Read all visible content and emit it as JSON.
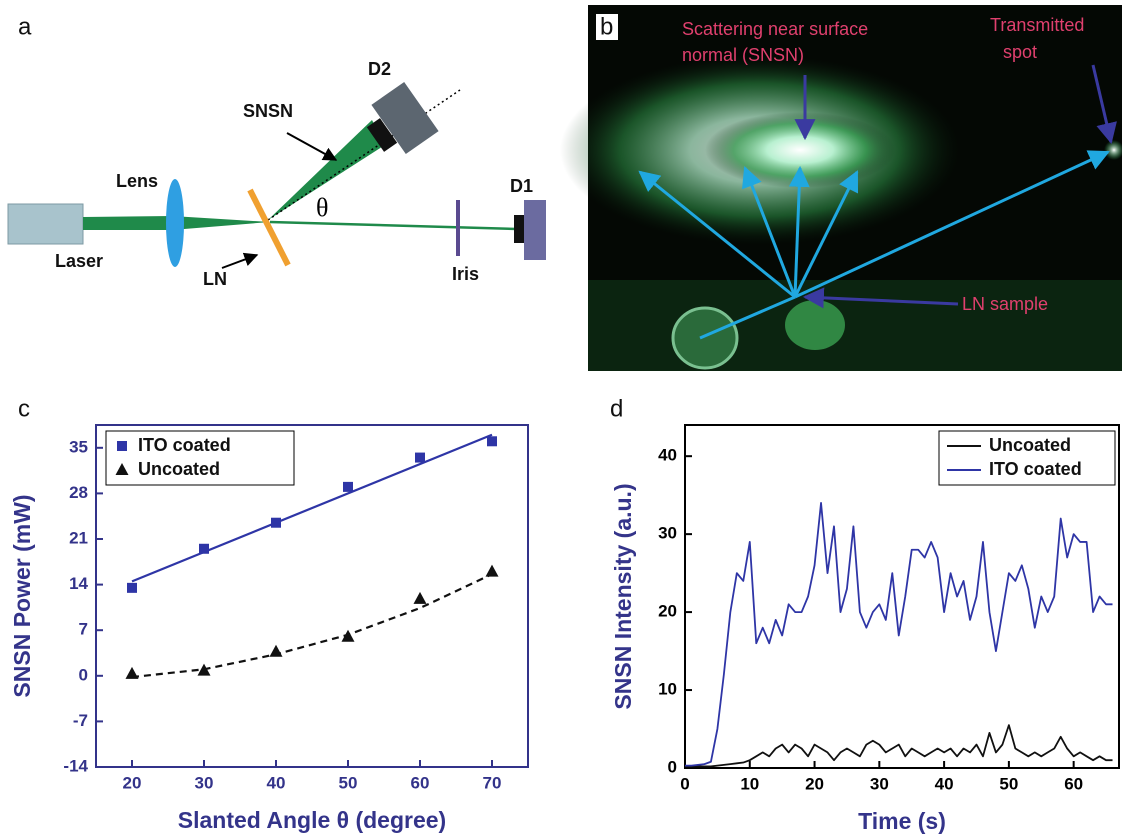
{
  "panel_labels": [
    "a",
    "b",
    "c",
    "d"
  ],
  "diagram": {
    "lens": "Lens",
    "snsn": "SNSN",
    "d2": "D2",
    "theta": "θ",
    "d1": "D1",
    "laser": "Laser",
    "ln": "LN",
    "iris": "Iris"
  },
  "photo": {
    "scattering": [
      "Scattering near surface",
      "normal (SNSN)"
    ],
    "transmitted": [
      "Transmitted",
      "spot"
    ],
    "sample": "LN sample"
  },
  "chart_data": [
    {
      "type": "scatter",
      "x_label": "Slanted Angle θ (degree)",
      "y_label": "SNSN Power (mW)",
      "x": [
        20,
        30,
        40,
        50,
        60,
        70
      ],
      "series": [
        {
          "name": "ITO coated",
          "color": "#2e35a6",
          "marker": "square",
          "values": [
            13.5,
            19.5,
            23.5,
            29,
            33.5,
            36
          ]
        },
        {
          "name": "Uncoated",
          "color": "#111111",
          "marker": "triangle",
          "values": [
            0.3,
            0.8,
            3.7,
            6,
            11.8,
            16
          ]
        }
      ],
      "fits": [
        {
          "color": "#2e35a6",
          "style": "solid",
          "x": [
            20,
            70
          ],
          "values": [
            14.5,
            37
          ]
        },
        {
          "color": "#111111",
          "style": "dashed",
          "x": [
            20,
            30,
            40,
            50,
            60,
            70
          ],
          "values": [
            -0.2,
            1,
            3.3,
            6.3,
            10.4,
            15.6
          ]
        }
      ],
      "xlim": [
        15,
        75
      ],
      "ylim": [
        -14,
        38.5
      ],
      "xticks": [
        20,
        30,
        40,
        50,
        60,
        70
      ],
      "yticks": [
        -14,
        -7,
        0,
        7,
        14,
        21,
        28,
        35
      ],
      "legend": "upper left",
      "axis_color": "#33338a",
      "label_color": "#34348a"
    },
    {
      "type": "line",
      "x_label": "Time (s)",
      "y_label": "SNSN Intensity (a.u.)",
      "x": [
        0,
        1,
        2,
        3,
        4,
        5,
        6,
        7,
        8,
        9,
        10,
        11,
        12,
        13,
        14,
        15,
        16,
        17,
        18,
        19,
        20,
        21,
        22,
        23,
        24,
        25,
        26,
        27,
        28,
        29,
        30,
        31,
        32,
        33,
        34,
        35,
        36,
        37,
        38,
        39,
        40,
        41,
        42,
        43,
        44,
        45,
        46,
        47,
        48,
        49,
        50,
        51,
        52,
        53,
        54,
        55,
        56,
        57,
        58,
        59,
        60,
        61,
        62,
        63,
        64,
        65,
        66
      ],
      "series": [
        {
          "name": "Uncoated",
          "color": "#111111",
          "values": [
            0.2,
            0.2,
            0.2,
            0.2,
            0.2,
            0.3,
            0.4,
            0.5,
            0.6,
            0.7,
            1,
            1.5,
            2,
            1.5,
            2.5,
            3,
            2,
            3,
            2.5,
            1.5,
            3,
            2.5,
            2,
            1,
            2,
            2.5,
            2,
            1.5,
            3,
            3.5,
            3,
            2,
            2.5,
            3,
            1.5,
            2.5,
            2,
            1.5,
            2,
            2.5,
            2,
            2.5,
            1.5,
            2.5,
            2,
            3,
            1.5,
            4.5,
            2,
            3,
            5.5,
            2.5,
            2,
            1.5,
            2,
            1.5,
            2,
            2.5,
            4,
            2.5,
            1.5,
            2,
            1.5,
            1,
            1.5,
            1,
            1
          ]
        },
        {
          "name": "ITO coated",
          "color": "#2e35a6",
          "values": [
            0.3,
            0.3,
            0.4,
            0.5,
            0.8,
            5,
            12,
            20,
            25,
            24,
            29,
            16,
            18,
            16,
            19,
            17,
            21,
            20,
            20,
            22,
            26,
            34,
            25,
            31,
            20,
            23,
            31,
            20,
            18,
            20,
            21,
            19,
            25,
            17,
            22,
            28,
            28,
            27,
            29,
            27,
            20,
            25,
            22,
            24,
            19,
            22,
            29,
            20,
            15,
            20,
            25,
            24,
            26,
            23,
            18,
            22,
            20,
            22,
            32,
            27,
            30,
            29,
            29,
            20,
            22,
            21,
            21
          ]
        }
      ],
      "xlim": [
        0,
        67
      ],
      "ylim": [
        0,
        44
      ],
      "xticks": [
        0,
        10,
        20,
        30,
        40,
        50,
        60
      ],
      "yticks": [
        0,
        10,
        20,
        30,
        40
      ],
      "legend": "upper right",
      "axis_color": "#000000",
      "label_color": "#34348a"
    }
  ]
}
